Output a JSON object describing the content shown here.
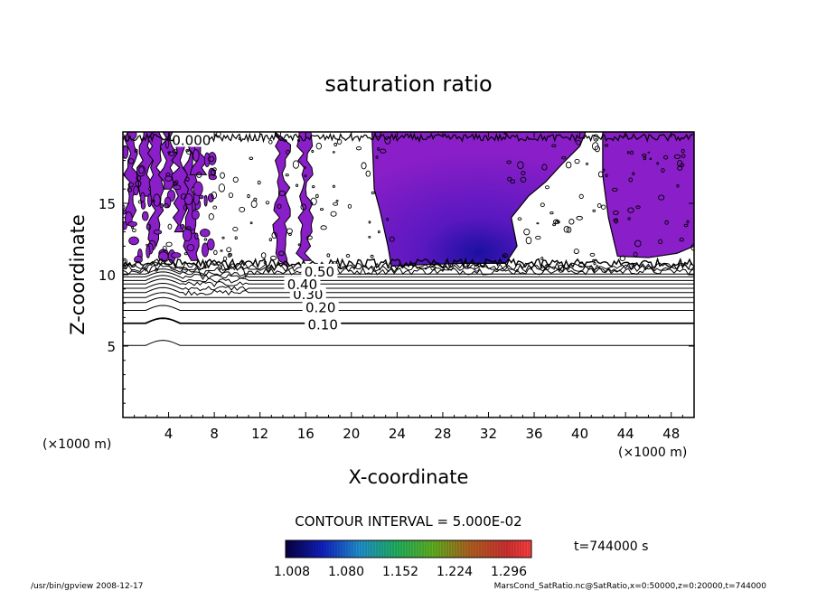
{
  "chart_data": {
    "type": "contour",
    "title": "saturation ratio",
    "xlabel": "X-coordinate",
    "ylabel": "Z-coordinate",
    "x_unit": "(×1000 m)",
    "z_unit": "(×1000 m)",
    "xlim": [
      0,
      50
    ],
    "ylim": [
      0,
      20
    ],
    "x_ticks": [
      4,
      8,
      12,
      16,
      20,
      24,
      28,
      32,
      36,
      40,
      44,
      48
    ],
    "y_ticks": [
      5,
      10,
      15
    ],
    "contour_interval_text": "CONTOUR INTERVAL = 5.000E-02",
    "contour_labels": [
      {
        "text": "0.10",
        "x": 17.5,
        "z": 6.5
      },
      {
        "text": "0.20",
        "x": 17.3,
        "z": 7.7
      },
      {
        "text": "0.30",
        "x": 16.2,
        "z": 8.6
      },
      {
        "text": "0.40",
        "x": 15.7,
        "z": 9.3
      },
      {
        "text": "0.50",
        "x": 17.2,
        "z": 10.2
      },
      {
        "text": "0.000",
        "x": 6.0,
        "z": 19.4
      }
    ],
    "colorbar": {
      "ticks": [
        "1.008",
        "1.080",
        "1.152",
        "1.224",
        "1.296"
      ],
      "colors_low_to_high": [
        "#0a0050",
        "#1a20c0",
        "#20a0d0",
        "#20c040",
        "#c0c020",
        "#d04020",
        "#ff3030"
      ]
    },
    "time_label": "t=744000 s",
    "colors": {
      "supersat_fill": "#8a1ec8",
      "core_fill": "#2a10b0"
    }
  },
  "footer": {
    "left": "/usr/bin/gpview   2008-12-17",
    "right": "MarsCond_SatRatio.nc@SatRatio,x=0:50000,z=0:20000,t=744000"
  }
}
